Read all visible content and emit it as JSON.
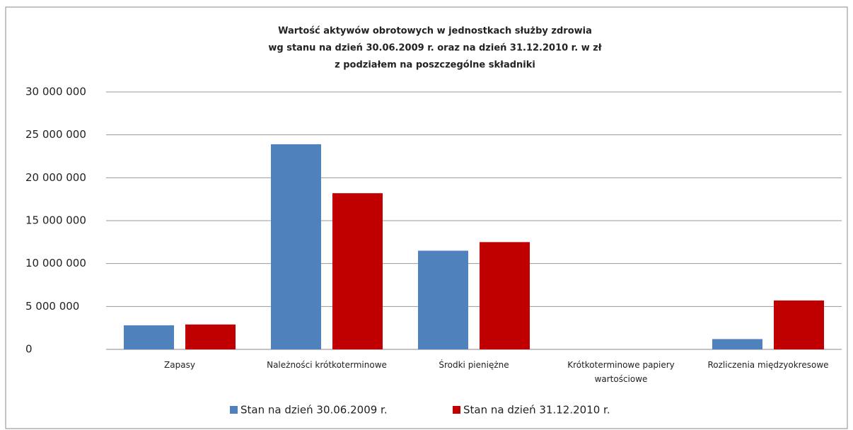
{
  "chart_data": {
    "type": "bar",
    "title": [
      "Wartość aktywów obrotowych w jednostkach służby zdrowia",
      "wg stanu na dzień 30.06.2009 r. oraz na dzień 31.12.2010 r. w zł",
      "z podziałem na poszczególne składniki"
    ],
    "categories": [
      "Zapasy",
      "Należności krótkoterminowe",
      "Środki pieniężne",
      "Krótkoterminowe papiery wartościowe",
      "Rozliczenia międzyokresowe"
    ],
    "series": [
      {
        "name": "Stan na dzień 30.06.2009 r.",
        "color": "#4f81bd",
        "values": [
          2800000,
          23900000,
          11500000,
          0,
          1200000
        ]
      },
      {
        "name": "Stan na dzień 31.12.2010 r.",
        "color": "#c00000",
        "values": [
          2900000,
          18200000,
          12500000,
          0,
          5700000
        ]
      }
    ],
    "ylim": [
      0,
      30000000
    ],
    "yticks": [
      0,
      {
        "value": 5000000,
        "label": "5 000 000"
      },
      {
        "value": 10000000,
        "label": "10 000 000"
      },
      {
        "value": 15000000,
        "label": "15 000 000"
      },
      {
        "value": 20000000,
        "label": "20 000 000"
      },
      {
        "value": 25000000,
        "label": "25 000 000"
      },
      {
        "value": 30000000,
        "label": "30 000 000"
      }
    ],
    "grid": true,
    "legend": "bottom"
  }
}
